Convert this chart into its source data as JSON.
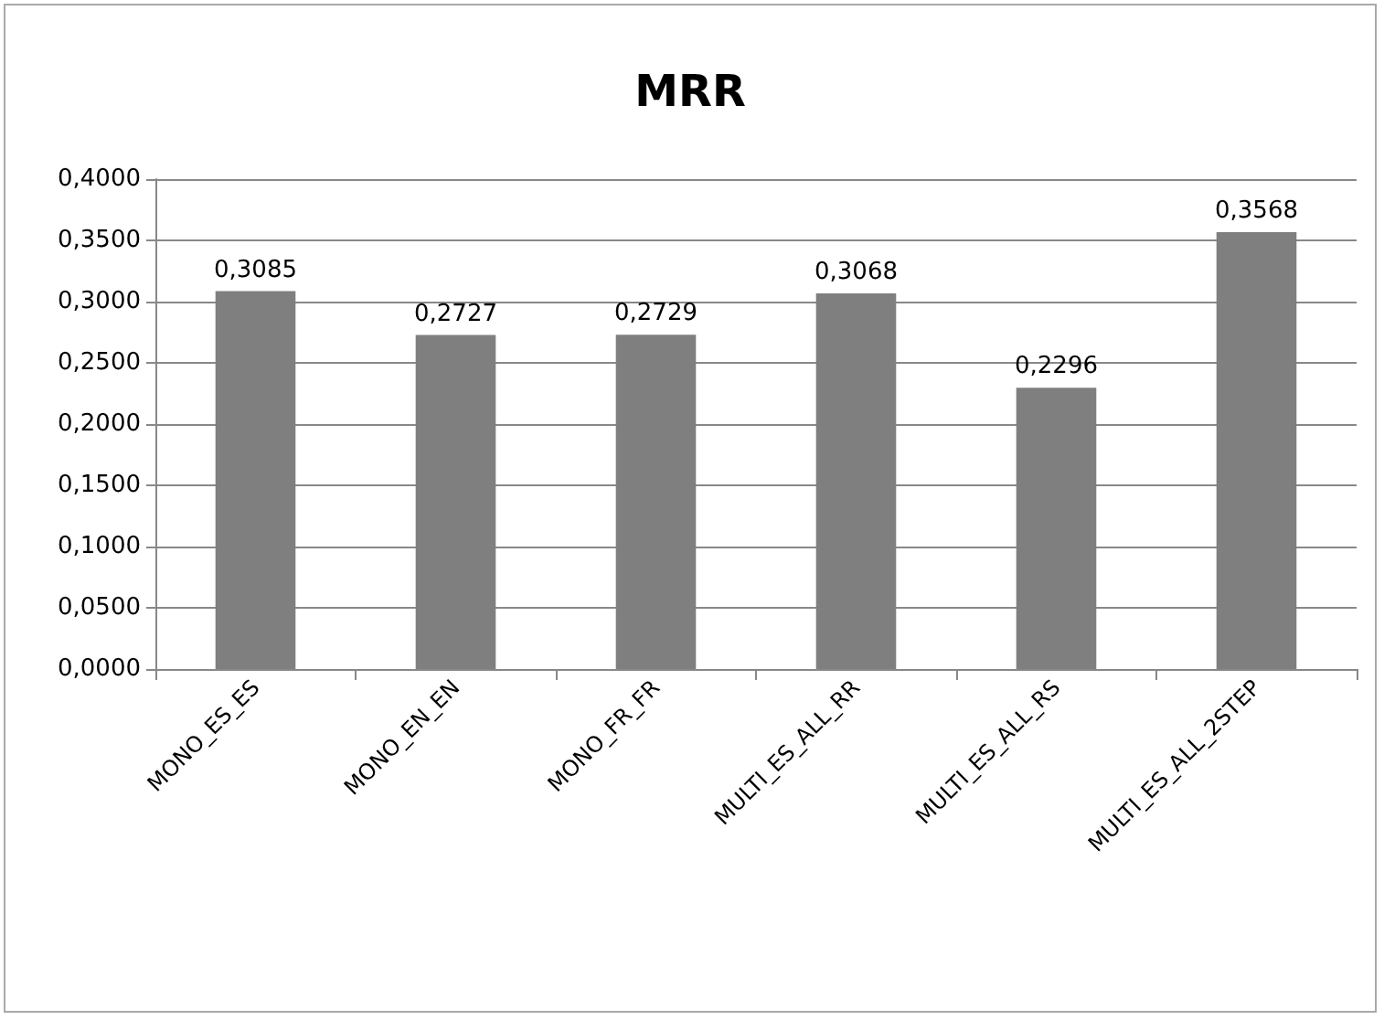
{
  "chart_data": {
    "type": "bar",
    "title": "MRR",
    "categories": [
      "MONO_ES_ES",
      "MONO_EN_EN",
      "MONO_FR_FR",
      "MULTI_ES_ALL_RR",
      "MULTI_ES_ALL_RS",
      "MULTI_ES_ALL_2STEP"
    ],
    "values": [
      0.3085,
      0.2727,
      0.2729,
      0.3068,
      0.2296,
      0.3568
    ],
    "value_labels": [
      "0,3085",
      "0,2727",
      "0,2729",
      "0,3068",
      "0,2296",
      "0,3568"
    ],
    "color": "#7f7f7f",
    "ylim": [
      0,
      0.4
    ],
    "yticks": [
      {
        "value": 0,
        "label": "0,0000"
      },
      {
        "value": 0.05,
        "label": "0,0500"
      },
      {
        "value": 0.1,
        "label": "0,1000"
      },
      {
        "value": 0.15,
        "label": "0,1500"
      },
      {
        "value": 0.2,
        "label": "0,2000"
      },
      {
        "value": 0.25,
        "label": "0,2500"
      },
      {
        "value": 0.3,
        "label": "0,3000"
      },
      {
        "value": 0.35,
        "label": "0,3500"
      },
      {
        "value": 0.4,
        "label": "0,4000"
      }
    ],
    "grid": "y"
  }
}
